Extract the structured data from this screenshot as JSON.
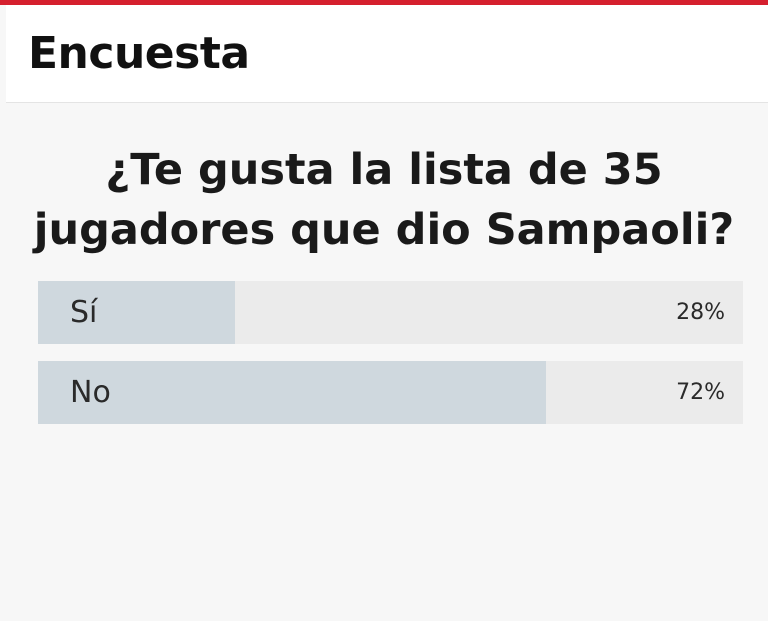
{
  "header": {
    "title": "Encuesta"
  },
  "poll": {
    "question": "¿Te gusta la lista de 35 jugadores que dio Sampaoli?",
    "options": [
      {
        "label": "Sí",
        "percent_text": "28%",
        "fraction": 0.28
      },
      {
        "label": "No",
        "percent_text": "72%",
        "fraction": 0.72
      }
    ]
  },
  "colors": {
    "accent": "#d5202e",
    "bar_fill": "#cfd8de",
    "bar_track": "#ebebeb"
  }
}
